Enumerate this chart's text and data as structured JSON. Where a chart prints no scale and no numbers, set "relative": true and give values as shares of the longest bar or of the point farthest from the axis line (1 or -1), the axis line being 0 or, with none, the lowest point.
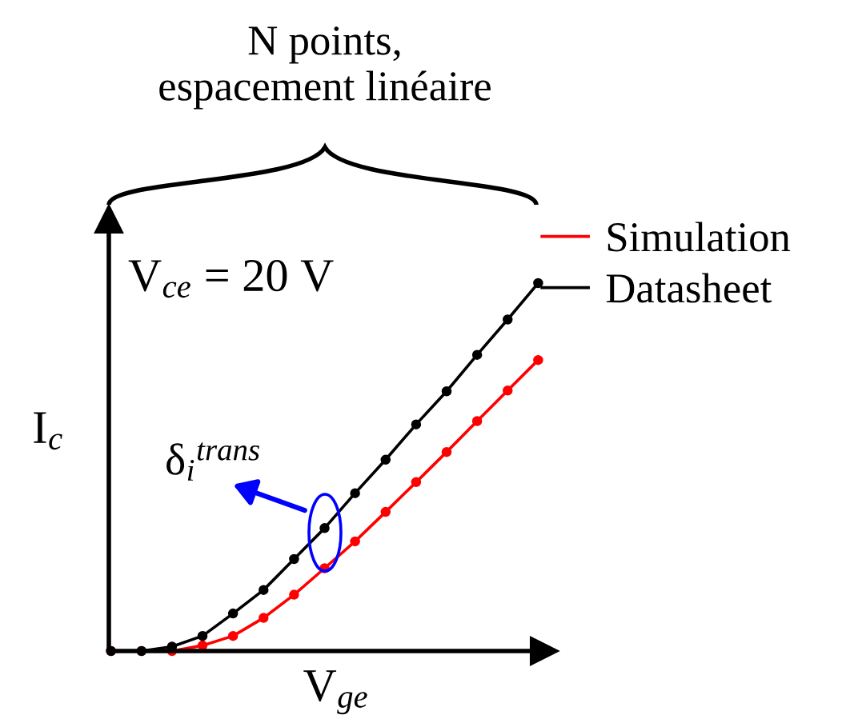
{
  "chart_data": {
    "type": "line",
    "relative": true,
    "xlabel": "V$_{ge}$",
    "ylabel": "I$_{c}$",
    "categories": [
      null,
      null,
      null,
      null,
      null,
      null,
      null,
      null,
      null,
      null,
      null,
      null,
      null,
      null,
      null
    ],
    "series": [
      {
        "name": "Simulation",
        "color": "#ff0000",
        "values": [
          0,
          0,
          0,
          0.015,
          0.041,
          0.09,
          0.153,
          0.225,
          0.298,
          0.378,
          0.459,
          0.541,
          0.625,
          0.708,
          0.791
        ]
      },
      {
        "name": "Datasheet",
        "color": "#000000",
        "values": [
          0,
          0,
          0.012,
          0.041,
          0.102,
          0.166,
          0.25,
          0.334,
          0.429,
          0.52,
          0.616,
          0.706,
          0.805,
          0.901,
          1
        ]
      }
    ],
    "annotations": [
      "N points,\nespacement linéaire",
      "V$_{ce}$ = 20 V",
      "δ$_{i}$$^{trans}$"
    ],
    "marker": "circle",
    "line_style": "solid",
    "legend": "top right"
  }
}
